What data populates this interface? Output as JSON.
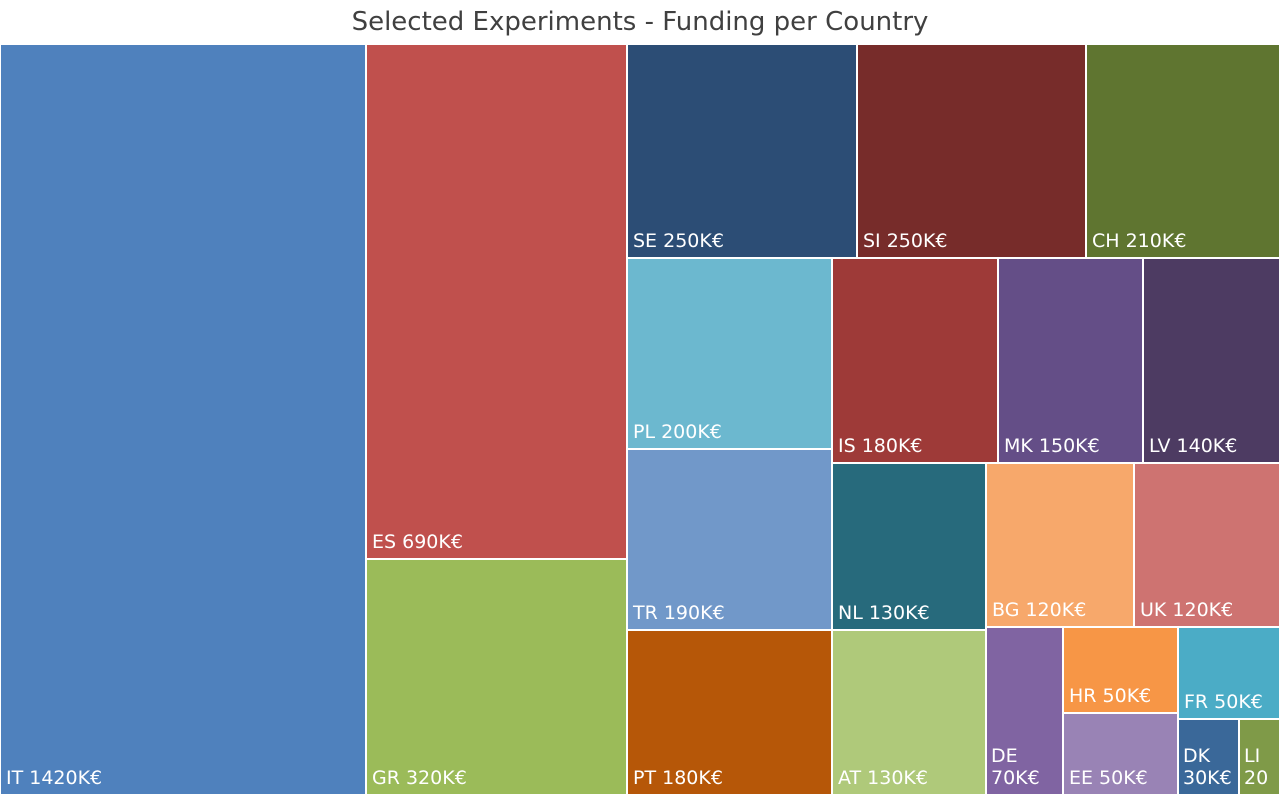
{
  "chart_data": {
    "type": "treemap",
    "title": "Selected Experiments - Funding per Country",
    "unit": "K€",
    "items": [
      {
        "country": "IT",
        "value": 1420,
        "label": "IT 1420K€",
        "color": "#4F81BD"
      },
      {
        "country": "ES",
        "value": 690,
        "label": "ES 690K€",
        "color": "#C0504D"
      },
      {
        "country": "GR",
        "value": 320,
        "label": "GR 320K€",
        "color": "#9BBB59"
      },
      {
        "country": "SE",
        "value": 250,
        "label": "SE 250K€",
        "color": "#2C4D75"
      },
      {
        "country": "SI",
        "value": 250,
        "label": "SI 250K€",
        "color": "#772C2A"
      },
      {
        "country": "CH",
        "value": 210,
        "label": "CH 210K€",
        "color": "#5F7530"
      },
      {
        "country": "PL",
        "value": 200,
        "label": "PL 200K€",
        "color": "#6CB8CF"
      },
      {
        "country": "TR",
        "value": 190,
        "label": "TR 190K€",
        "color": "#7198C9"
      },
      {
        "country": "IS",
        "value": 180,
        "label": "IS 180K€",
        "color": "#9E3A38"
      },
      {
        "country": "PT",
        "value": 180,
        "label": "PT 180K€",
        "color": "#B65708"
      },
      {
        "country": "MK",
        "value": 150,
        "label": "MK 150K€",
        "color": "#644E87"
      },
      {
        "country": "LV",
        "value": 140,
        "label": "LV 140K€",
        "color": "#4D3B62"
      },
      {
        "country": "NL",
        "value": 130,
        "label": "NL 130K€",
        "color": "#276A7C"
      },
      {
        "country": "AT",
        "value": 130,
        "label": "AT 130K€",
        "color": "#AFC97A"
      },
      {
        "country": "BG",
        "value": 120,
        "label": "BG 120K€",
        "color": "#F7A86B"
      },
      {
        "country": "UK",
        "value": 120,
        "label": "UK 120K€",
        "color": "#CE7371"
      },
      {
        "country": "DE",
        "value": 70,
        "label": "DE 70K€",
        "color": "#8064A2"
      },
      {
        "country": "HR",
        "value": 50,
        "label": "HR 50K€",
        "color": "#F79646"
      },
      {
        "country": "FR",
        "value": 50,
        "label": "FR 50K€",
        "color": "#4BACC6"
      },
      {
        "country": "EE",
        "value": 50,
        "label": "EE 50K€",
        "color": "#9983B5"
      },
      {
        "country": "DK",
        "value": 30,
        "label": "DK 30K€",
        "color": "#3A6899"
      },
      {
        "country": "LI",
        "value": 20,
        "label": "LI 20",
        "color": "#7F9A48"
      }
    ]
  }
}
